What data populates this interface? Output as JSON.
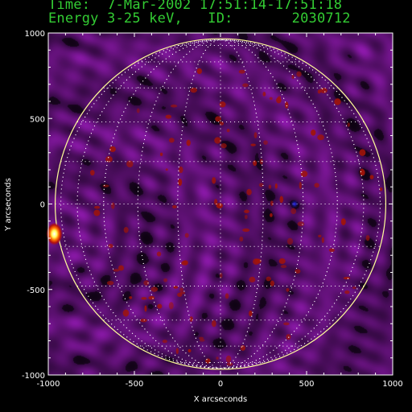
{
  "header": {
    "time_label": "Time:",
    "time_value": "7-Mar-2002 17:51:14-17:51:18",
    "energy_label": "Energy 3-25 keV,",
    "id_label": "ID:",
    "id_value": "2030712"
  },
  "chart_data": {
    "type": "heatmap",
    "title": "",
    "xlabel": "X arcseconds",
    "ylabel": "Y arcseconds",
    "xlim": [
      -1000,
      1000
    ],
    "ylim": [
      -1000,
      1000
    ],
    "xticks": [
      -1000,
      -500,
      0,
      500,
      1000
    ],
    "yticks": [
      -1000,
      -500,
      0,
      500,
      1000
    ],
    "solar_limb_radius": 960,
    "grid": "heliographic lat/lon grid, dotted",
    "colors": {
      "background": "#000000",
      "image_low": "#3a0a4a",
      "image_mid": "#7a1f9a",
      "source_hot": "#ffffff",
      "source_warm": "#ff6a00",
      "source_red": "#a0140a",
      "limb": "#ffff99",
      "grid": "#ffffff",
      "text": "#33cc33"
    },
    "sources": [
      {
        "x": -965,
        "y": -175,
        "intensity": "max"
      },
      {
        "x": 430,
        "y": 0,
        "intensity": "negative"
      }
    ]
  }
}
